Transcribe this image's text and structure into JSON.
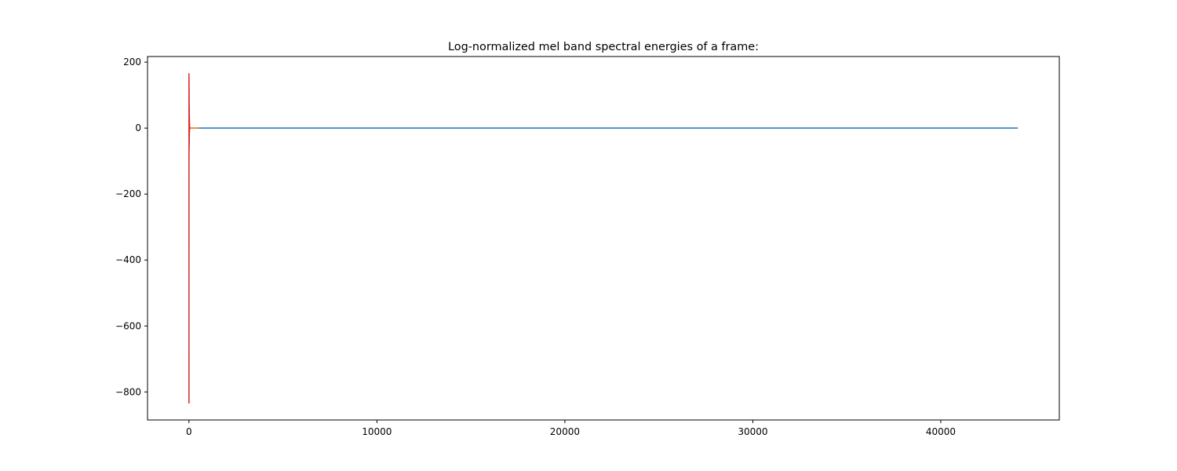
{
  "chart_data": {
    "type": "line",
    "title": "Log-normalized mel band spectral energies of a frame:",
    "xlabel": "",
    "ylabel": "",
    "xlim": [
      -2205,
      46305
    ],
    "ylim": [
      -885,
      217
    ],
    "x_ticks": [
      0,
      10000,
      20000,
      30000,
      40000
    ],
    "x_tick_labels": [
      "0",
      "10000",
      "20000",
      "30000",
      "40000"
    ],
    "y_ticks": [
      200,
      0,
      -200,
      -400,
      -600,
      -800
    ],
    "y_tick_labels": [
      "200",
      "0",
      "−200",
      "−400",
      "−600",
      "−800"
    ],
    "grid": false,
    "legend": "none",
    "series": [
      {
        "color": "#1f77b4",
        "x": [
          0,
          44100
        ],
        "y": [
          0,
          0
        ]
      },
      {
        "color": "#ff7f0e",
        "x": [
          0,
          513
        ],
        "y": [
          0,
          0
        ]
      },
      {
        "color": "#2ca02c",
        "x": [
          0,
          40
        ],
        "y": [
          -20,
          -20
        ]
      },
      {
        "color": "#d62728",
        "x": [
          0,
          1,
          2,
          3,
          4,
          5,
          6,
          7,
          8,
          9,
          10,
          11,
          12,
          13,
          14,
          15,
          16,
          17,
          18,
          19,
          20,
          21,
          22,
          23,
          24,
          25,
          26,
          27,
          28,
          29,
          30,
          31,
          32,
          33,
          34,
          35,
          36,
          37,
          38,
          39
        ],
        "y": [
          -835,
          165,
          20,
          -90,
          150,
          60,
          -40,
          120,
          10,
          -60,
          90,
          30,
          -20,
          70,
          5,
          -50,
          60,
          15,
          -30,
          40,
          0,
          -25,
          35,
          8,
          -15,
          25,
          2,
          -10,
          20,
          5,
          -8,
          15,
          1,
          -5,
          10,
          3,
          -4,
          6,
          1,
          -2
        ]
      }
    ]
  }
}
